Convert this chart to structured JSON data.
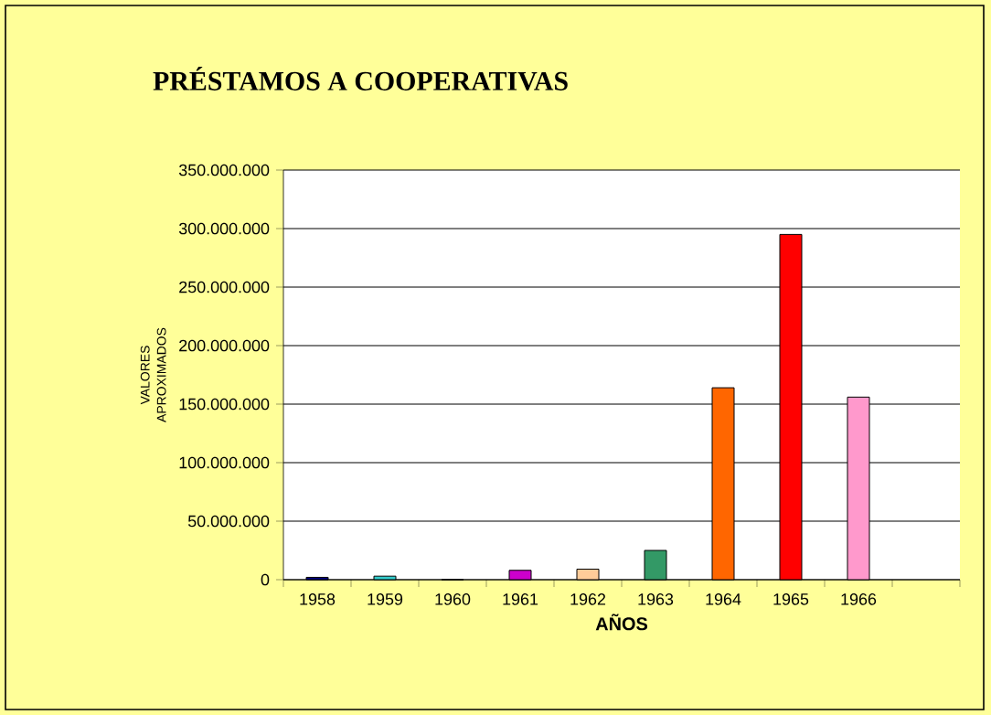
{
  "chart_data": {
    "type": "bar",
    "title": "PRÉSTAMOS A COOPERATIVAS",
    "xlabel": "AÑOS",
    "ylabel": "VALORES APROXIMADOS",
    "categories": [
      "1958",
      "1959",
      "1960",
      "1961",
      "1962",
      "1963",
      "1964",
      "1965",
      "1966",
      null
    ],
    "values": [
      2000000,
      3000000,
      0,
      8000000,
      9000000,
      25000000,
      164000000,
      295000000,
      156000000,
      null
    ],
    "colors": [
      "#000080",
      "#33cccc",
      "#ffffff",
      "#cc00cc",
      "#ffcc99",
      "#339966",
      "#ff6600",
      "#ff0000",
      "#ff99cc",
      "#ffffff"
    ],
    "ylim": [
      0,
      350000000
    ],
    "yticks": [
      {
        "value": 0,
        "label": "0"
      },
      {
        "value": 50000000,
        "label": "50.000.000"
      },
      {
        "value": 100000000,
        "label": "100.000.000"
      },
      {
        "value": 150000000,
        "label": "150.000.000"
      },
      {
        "value": 200000000,
        "label": "200.000.000"
      },
      {
        "value": 250000000,
        "label": "250.000.000"
      },
      {
        "value": 300000000,
        "label": "300.000.000"
      },
      {
        "value": 350000000,
        "label": "350.000.000"
      }
    ],
    "grid": "y",
    "legend": false
  }
}
